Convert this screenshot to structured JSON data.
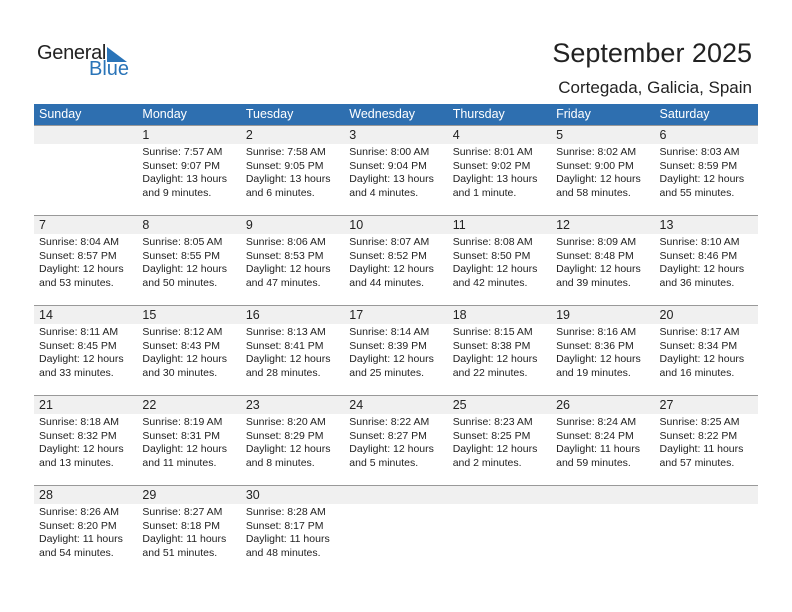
{
  "logo": {
    "line1": "General",
    "line2": "Blue"
  },
  "header": {
    "title": "September 2025",
    "location": "Cortegada, Galicia, Spain"
  },
  "colors": {
    "accent": "#2e6fb0",
    "date_strip": "#f0f0f0"
  },
  "days": [
    "Sunday",
    "Monday",
    "Tuesday",
    "Wednesday",
    "Thursday",
    "Friday",
    "Saturday"
  ],
  "weeks": [
    [
      null,
      {
        "day": "1",
        "sunrise": "Sunrise: 7:57 AM",
        "sunset": "Sunset: 9:07 PM",
        "daylight1": "Daylight: 13 hours",
        "daylight2": "and 9 minutes."
      },
      {
        "day": "2",
        "sunrise": "Sunrise: 7:58 AM",
        "sunset": "Sunset: 9:05 PM",
        "daylight1": "Daylight: 13 hours",
        "daylight2": "and 6 minutes."
      },
      {
        "day": "3",
        "sunrise": "Sunrise: 8:00 AM",
        "sunset": "Sunset: 9:04 PM",
        "daylight1": "Daylight: 13 hours",
        "daylight2": "and 4 minutes."
      },
      {
        "day": "4",
        "sunrise": "Sunrise: 8:01 AM",
        "sunset": "Sunset: 9:02 PM",
        "daylight1": "Daylight: 13 hours",
        "daylight2": "and 1 minute."
      },
      {
        "day": "5",
        "sunrise": "Sunrise: 8:02 AM",
        "sunset": "Sunset: 9:00 PM",
        "daylight1": "Daylight: 12 hours",
        "daylight2": "and 58 minutes."
      },
      {
        "day": "6",
        "sunrise": "Sunrise: 8:03 AM",
        "sunset": "Sunset: 8:59 PM",
        "daylight1": "Daylight: 12 hours",
        "daylight2": "and 55 minutes."
      }
    ],
    [
      {
        "day": "7",
        "sunrise": "Sunrise: 8:04 AM",
        "sunset": "Sunset: 8:57 PM",
        "daylight1": "Daylight: 12 hours",
        "daylight2": "and 53 minutes."
      },
      {
        "day": "8",
        "sunrise": "Sunrise: 8:05 AM",
        "sunset": "Sunset: 8:55 PM",
        "daylight1": "Daylight: 12 hours",
        "daylight2": "and 50 minutes."
      },
      {
        "day": "9",
        "sunrise": "Sunrise: 8:06 AM",
        "sunset": "Sunset: 8:53 PM",
        "daylight1": "Daylight: 12 hours",
        "daylight2": "and 47 minutes."
      },
      {
        "day": "10",
        "sunrise": "Sunrise: 8:07 AM",
        "sunset": "Sunset: 8:52 PM",
        "daylight1": "Daylight: 12 hours",
        "daylight2": "and 44 minutes."
      },
      {
        "day": "11",
        "sunrise": "Sunrise: 8:08 AM",
        "sunset": "Sunset: 8:50 PM",
        "daylight1": "Daylight: 12 hours",
        "daylight2": "and 42 minutes."
      },
      {
        "day": "12",
        "sunrise": "Sunrise: 8:09 AM",
        "sunset": "Sunset: 8:48 PM",
        "daylight1": "Daylight: 12 hours",
        "daylight2": "and 39 minutes."
      },
      {
        "day": "13",
        "sunrise": "Sunrise: 8:10 AM",
        "sunset": "Sunset: 8:46 PM",
        "daylight1": "Daylight: 12 hours",
        "daylight2": "and 36 minutes."
      }
    ],
    [
      {
        "day": "14",
        "sunrise": "Sunrise: 8:11 AM",
        "sunset": "Sunset: 8:45 PM",
        "daylight1": "Daylight: 12 hours",
        "daylight2": "and 33 minutes."
      },
      {
        "day": "15",
        "sunrise": "Sunrise: 8:12 AM",
        "sunset": "Sunset: 8:43 PM",
        "daylight1": "Daylight: 12 hours",
        "daylight2": "and 30 minutes."
      },
      {
        "day": "16",
        "sunrise": "Sunrise: 8:13 AM",
        "sunset": "Sunset: 8:41 PM",
        "daylight1": "Daylight: 12 hours",
        "daylight2": "and 28 minutes."
      },
      {
        "day": "17",
        "sunrise": "Sunrise: 8:14 AM",
        "sunset": "Sunset: 8:39 PM",
        "daylight1": "Daylight: 12 hours",
        "daylight2": "and 25 minutes."
      },
      {
        "day": "18",
        "sunrise": "Sunrise: 8:15 AM",
        "sunset": "Sunset: 8:38 PM",
        "daylight1": "Daylight: 12 hours",
        "daylight2": "and 22 minutes."
      },
      {
        "day": "19",
        "sunrise": "Sunrise: 8:16 AM",
        "sunset": "Sunset: 8:36 PM",
        "daylight1": "Daylight: 12 hours",
        "daylight2": "and 19 minutes."
      },
      {
        "day": "20",
        "sunrise": "Sunrise: 8:17 AM",
        "sunset": "Sunset: 8:34 PM",
        "daylight1": "Daylight: 12 hours",
        "daylight2": "and 16 minutes."
      }
    ],
    [
      {
        "day": "21",
        "sunrise": "Sunrise: 8:18 AM",
        "sunset": "Sunset: 8:32 PM",
        "daylight1": "Daylight: 12 hours",
        "daylight2": "and 13 minutes."
      },
      {
        "day": "22",
        "sunrise": "Sunrise: 8:19 AM",
        "sunset": "Sunset: 8:31 PM",
        "daylight1": "Daylight: 12 hours",
        "daylight2": "and 11 minutes."
      },
      {
        "day": "23",
        "sunrise": "Sunrise: 8:20 AM",
        "sunset": "Sunset: 8:29 PM",
        "daylight1": "Daylight: 12 hours",
        "daylight2": "and 8 minutes."
      },
      {
        "day": "24",
        "sunrise": "Sunrise: 8:22 AM",
        "sunset": "Sunset: 8:27 PM",
        "daylight1": "Daylight: 12 hours",
        "daylight2": "and 5 minutes."
      },
      {
        "day": "25",
        "sunrise": "Sunrise: 8:23 AM",
        "sunset": "Sunset: 8:25 PM",
        "daylight1": "Daylight: 12 hours",
        "daylight2": "and 2 minutes."
      },
      {
        "day": "26",
        "sunrise": "Sunrise: 8:24 AM",
        "sunset": "Sunset: 8:24 PM",
        "daylight1": "Daylight: 11 hours",
        "daylight2": "and 59 minutes."
      },
      {
        "day": "27",
        "sunrise": "Sunrise: 8:25 AM",
        "sunset": "Sunset: 8:22 PM",
        "daylight1": "Daylight: 11 hours",
        "daylight2": "and 57 minutes."
      }
    ],
    [
      {
        "day": "28",
        "sunrise": "Sunrise: 8:26 AM",
        "sunset": "Sunset: 8:20 PM",
        "daylight1": "Daylight: 11 hours",
        "daylight2": "and 54 minutes."
      },
      {
        "day": "29",
        "sunrise": "Sunrise: 8:27 AM",
        "sunset": "Sunset: 8:18 PM",
        "daylight1": "Daylight: 11 hours",
        "daylight2": "and 51 minutes."
      },
      {
        "day": "30",
        "sunrise": "Sunrise: 8:28 AM",
        "sunset": "Sunset: 8:17 PM",
        "daylight1": "Daylight: 11 hours",
        "daylight2": "and 48 minutes."
      },
      null,
      null,
      null,
      null
    ]
  ]
}
